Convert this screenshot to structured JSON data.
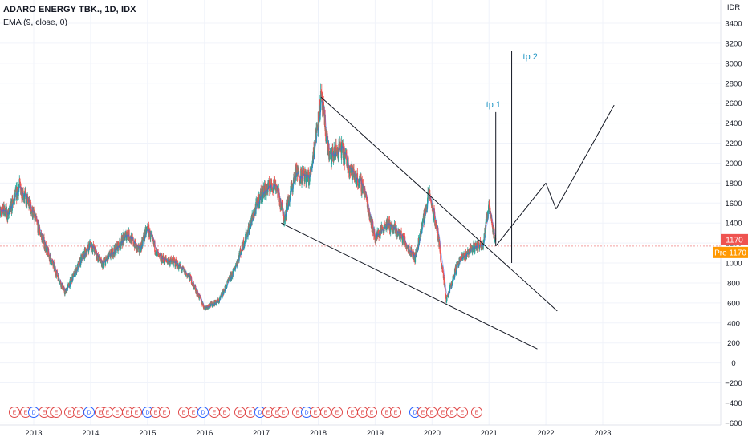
{
  "header": {
    "title": "ADARO ENERGY TBK., 1D, IDX",
    "indicator": "EMA (9, close, 0)"
  },
  "price_axis": {
    "unit_top": "IDR",
    "currency": "IDR"
  },
  "tags": {
    "last_price": "1170",
    "pre_label": "Pre",
    "pre_price": "1170"
  },
  "annotations": {
    "tp1": "tp 1",
    "tp2": "tp 2"
  },
  "events": [
    "E",
    "E",
    "D",
    "E",
    "E",
    "E",
    "E",
    "E",
    "D",
    "E",
    "E",
    "E",
    "E",
    "E",
    "D",
    "E",
    "E",
    "E",
    "E",
    "D",
    "E",
    "E",
    "E",
    "E",
    "D",
    "E",
    "E",
    "E",
    "E",
    "D",
    "E",
    "E",
    "E",
    "E",
    "E",
    "E",
    "E",
    "E",
    "D",
    "E",
    "E",
    "E",
    "E",
    "E",
    "E"
  ],
  "colors": {
    "up": "#26a69a",
    "down": "#ef5350",
    "lines": "#131722",
    "annotation": "#2196c4",
    "price_tag": "#ef5350",
    "pre_tag": "#ff9800",
    "price_line": "#f4a0a0"
  },
  "chart_data": {
    "type": "candlestick",
    "title": "ADARO ENERGY TBK., 1D, IDX",
    "indicator": "EMA (9, close, 0)",
    "ylim": [
      -600,
      3400
    ],
    "y_ticks": [
      3400,
      3200,
      3000,
      2800,
      2600,
      2400,
      2200,
      2000,
      1800,
      1600,
      1400,
      1200,
      1000,
      800,
      600,
      400,
      200,
      0,
      -200,
      -400,
      -600
    ],
    "x_ticks": [
      "2013",
      "2014",
      "2015",
      "2016",
      "2017",
      "2018",
      "2019",
      "2020",
      "2021",
      "2022",
      "2023"
    ],
    "last_price": 1170,
    "price_path": [
      {
        "t": 2012.0,
        "p": 1500
      },
      {
        "t": 2012.3,
        "p": 1600
      },
      {
        "t": 2012.55,
        "p": 1480
      },
      {
        "t": 2012.75,
        "p": 1770
      },
      {
        "t": 2012.95,
        "p": 1550
      },
      {
        "t": 2013.25,
        "p": 1100
      },
      {
        "t": 2013.55,
        "p": 700
      },
      {
        "t": 2013.85,
        "p": 1050
      },
      {
        "t": 2014.0,
        "p": 1200
      },
      {
        "t": 2014.2,
        "p": 980
      },
      {
        "t": 2014.45,
        "p": 1150
      },
      {
        "t": 2014.65,
        "p": 1300
      },
      {
        "t": 2014.85,
        "p": 1120
      },
      {
        "t": 2015.0,
        "p": 1350
      },
      {
        "t": 2015.2,
        "p": 1050
      },
      {
        "t": 2015.5,
        "p": 1000
      },
      {
        "t": 2015.75,
        "p": 850
      },
      {
        "t": 2016.0,
        "p": 550
      },
      {
        "t": 2016.25,
        "p": 620
      },
      {
        "t": 2016.5,
        "p": 900
      },
      {
        "t": 2016.75,
        "p": 1300
      },
      {
        "t": 2017.0,
        "p": 1700
      },
      {
        "t": 2017.25,
        "p": 1800
      },
      {
        "t": 2017.4,
        "p": 1450
      },
      {
        "t": 2017.6,
        "p": 1900
      },
      {
        "t": 2017.85,
        "p": 1850
      },
      {
        "t": 2018.05,
        "p": 2650
      },
      {
        "t": 2018.2,
        "p": 2050
      },
      {
        "t": 2018.4,
        "p": 2150
      },
      {
        "t": 2018.6,
        "p": 1900
      },
      {
        "t": 2018.8,
        "p": 1750
      },
      {
        "t": 2019.0,
        "p": 1250
      },
      {
        "t": 2019.2,
        "p": 1400
      },
      {
        "t": 2019.45,
        "p": 1280
      },
      {
        "t": 2019.7,
        "p": 1050
      },
      {
        "t": 2019.95,
        "p": 1700
      },
      {
        "t": 2020.1,
        "p": 1300
      },
      {
        "t": 2020.25,
        "p": 620
      },
      {
        "t": 2020.45,
        "p": 1000
      },
      {
        "t": 2020.7,
        "p": 1150
      },
      {
        "t": 2020.9,
        "p": 1200
      },
      {
        "t": 2021.0,
        "p": 1600
      },
      {
        "t": 2021.12,
        "p": 1170
      }
    ],
    "trendlines": [
      {
        "name": "upper-channel-line",
        "from": {
          "t": 2018.05,
          "p": 2660
        },
        "to": {
          "t": 2022.2,
          "p": 520
        }
      },
      {
        "name": "lower-channel-line",
        "from": {
          "t": 2017.35,
          "p": 1400
        },
        "to": {
          "t": 2021.85,
          "p": 140
        }
      },
      {
        "name": "tp1-line",
        "from": {
          "t": 2021.12,
          "p": 1170
        },
        "to": {
          "t": 2021.12,
          "p": 2510
        }
      },
      {
        "name": "tp2-line",
        "from": {
          "t": 2021.4,
          "p": 1000
        },
        "to": {
          "t": 2021.4,
          "p": 3120
        }
      },
      {
        "name": "projection-line-1",
        "from": {
          "t": 2021.12,
          "p": 1170
        },
        "to": {
          "t": 2022.0,
          "p": 1800
        }
      },
      {
        "name": "projection-line-2",
        "from": {
          "t": 2022.0,
          "p": 1800
        },
        "to": {
          "t": 2022.18,
          "p": 1540
        }
      },
      {
        "name": "projection-line-3",
        "from": {
          "t": 2022.18,
          "p": 1540
        },
        "to": {
          "t": 2023.2,
          "p": 2580
        }
      }
    ]
  }
}
